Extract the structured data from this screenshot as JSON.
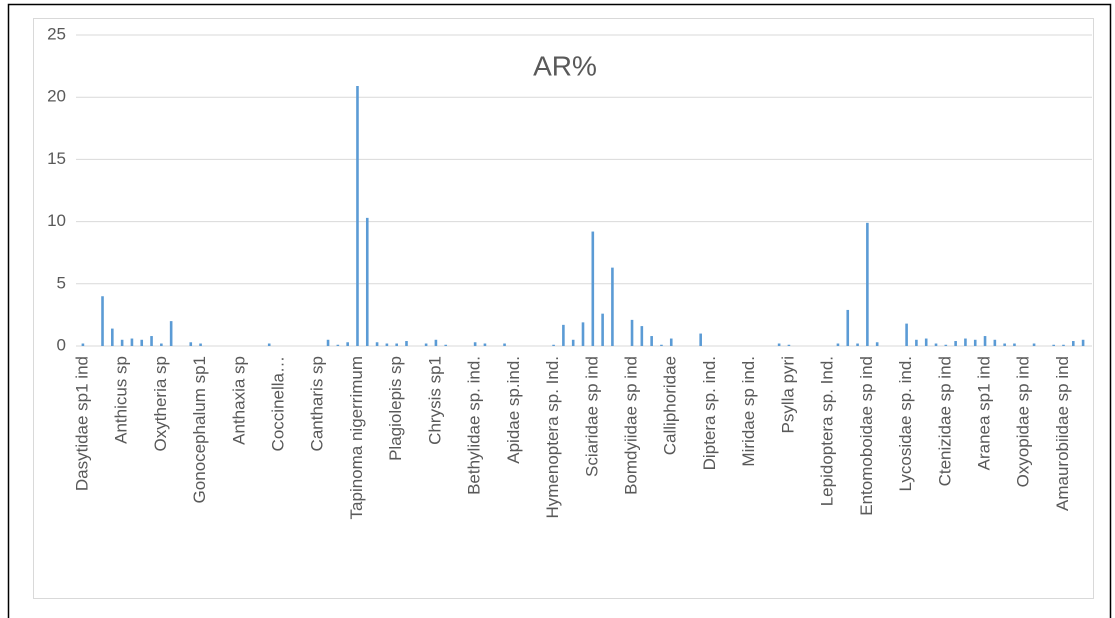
{
  "chart_data": {
    "type": "bar",
    "title": "AR%",
    "categories": [
      "Dasytidae sp1 ind",
      null,
      null,
      null,
      "Anthicus sp",
      null,
      null,
      null,
      "Oxytheria sp",
      null,
      null,
      null,
      "Gonocephalum sp1",
      null,
      null,
      null,
      "Anthaxia sp",
      null,
      null,
      null,
      "Coccinella…",
      null,
      null,
      null,
      "Cantharis sp",
      null,
      null,
      null,
      "Tapinoma nigerrimum",
      null,
      null,
      null,
      "Plagiolepis sp",
      null,
      null,
      null,
      "Chrysis sp1",
      null,
      null,
      null,
      "Bethylidae sp. ind.",
      null,
      null,
      null,
      "Apidae sp.ind.",
      null,
      null,
      null,
      "Hymenoptera sp. Ind.",
      null,
      null,
      null,
      "Sciaridae sp ind",
      null,
      null,
      null,
      "Bomdyiidae sp ind",
      null,
      null,
      null,
      "Calliphoridae",
      null,
      null,
      null,
      "Diptera sp. ind.",
      null,
      null,
      null,
      "Miridae sp ind.",
      null,
      null,
      null,
      "Psylla pyri",
      null,
      null,
      null,
      "Lepidoptera sp. Ind.",
      null,
      null,
      null,
      "Entomoboidae sp ind",
      null,
      null,
      null,
      "Lycosidae sp. ind.",
      null,
      null,
      null,
      "Ctenizidae sp ind",
      null,
      null,
      null,
      "Aranea sp1 ind",
      null,
      null,
      null,
      "Oxyopidae sp ind",
      null,
      null,
      null,
      "Amaurobiidae sp ind",
      null,
      null
    ],
    "values": [
      0.2,
      0,
      4.0,
      1.4,
      0.5,
      0.6,
      0.5,
      0.8,
      0.2,
      2.0,
      0,
      0.3,
      0.2,
      0,
      0,
      0,
      0,
      0,
      0,
      0.2,
      0,
      0,
      0,
      0,
      0,
      0.5,
      0.1,
      0.3,
      20.9,
      10.3,
      0.3,
      0.2,
      0.2,
      0.4,
      0,
      0.2,
      0.5,
      0.1,
      0,
      0,
      0.3,
      0.2,
      0,
      0.2,
      0,
      0,
      0,
      0,
      0.1,
      1.7,
      0.5,
      1.9,
      9.2,
      2.6,
      6.3,
      0,
      2.1,
      1.6,
      0.8,
      0.1,
      0.6,
      0,
      0,
      1.0,
      0,
      0,
      0,
      0,
      0,
      0,
      0,
      0.2,
      0.1,
      0,
      0,
      0,
      0,
      0.2,
      2.9,
      0.2,
      9.9,
      0.3,
      0,
      0,
      1.8,
      0.5,
      0.6,
      0.2,
      0.1,
      0.4,
      0.6,
      0.5,
      0.8,
      0.5,
      0.2,
      0.2,
      0,
      0.2,
      0,
      0.1,
      0.1,
      0.4,
      0.5
    ],
    "color": "#5b9bd5",
    "ylim": [
      0,
      25
    ],
    "yticks": [
      0,
      5,
      10,
      15,
      20,
      25
    ],
    "grid": true
  }
}
